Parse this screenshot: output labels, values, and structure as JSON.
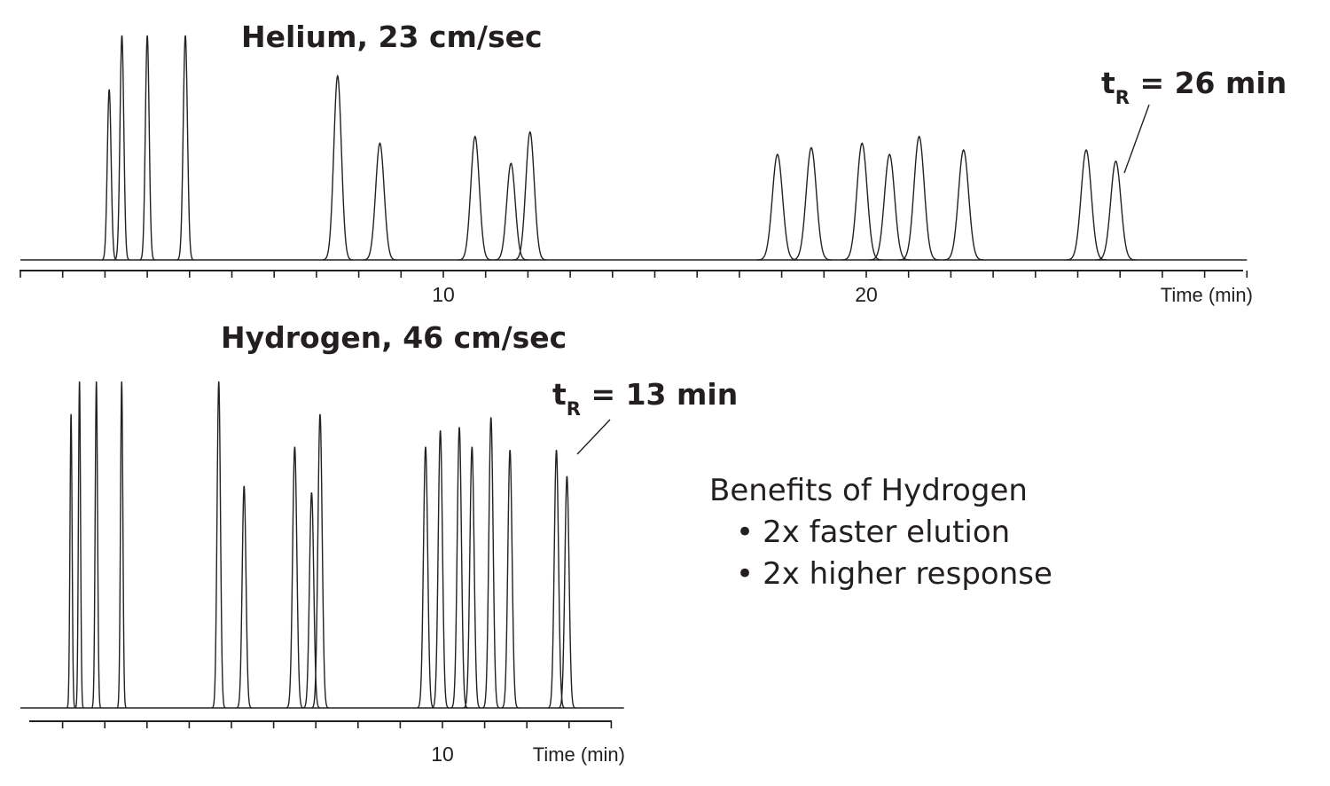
{
  "chart_data": [
    {
      "type": "line",
      "title": "Helium, 23 cm/sec",
      "xlabel": "Time (min)",
      "ylabel": "",
      "xlim": [
        0,
        29
      ],
      "xticks": [
        0,
        1,
        2,
        3,
        4,
        5,
        6,
        7,
        8,
        9,
        10,
        11,
        12,
        13,
        14,
        15,
        16,
        17,
        18,
        19,
        20,
        21,
        22,
        23,
        24,
        25,
        26,
        27,
        28,
        29
      ],
      "xtick_labels": [
        {
          "value": 10,
          "label": "10"
        },
        {
          "value": 20,
          "label": "20"
        }
      ],
      "grid": false,
      "peaks": [
        {
          "t": 2.1,
          "height": 0.76,
          "width": 0.045
        },
        {
          "t": 2.4,
          "height": 1.0,
          "width": 0.045
        },
        {
          "t": 3.0,
          "height": 1.0,
          "width": 0.045
        },
        {
          "t": 3.9,
          "height": 1.0,
          "width": 0.05
        },
        {
          "t": 7.5,
          "height": 0.82,
          "width": 0.09
        },
        {
          "t": 8.5,
          "height": 0.52,
          "width": 0.1
        },
        {
          "t": 10.75,
          "height": 0.55,
          "width": 0.1
        },
        {
          "t": 11.6,
          "height": 0.43,
          "width": 0.1
        },
        {
          "t": 12.05,
          "height": 0.57,
          "width": 0.1
        },
        {
          "t": 17.9,
          "height": 0.47,
          "width": 0.12
        },
        {
          "t": 18.7,
          "height": 0.5,
          "width": 0.12
        },
        {
          "t": 19.9,
          "height": 0.52,
          "width": 0.12
        },
        {
          "t": 20.55,
          "height": 0.47,
          "width": 0.12
        },
        {
          "t": 21.25,
          "height": 0.55,
          "width": 0.12
        },
        {
          "t": 22.3,
          "height": 0.49,
          "width": 0.12
        },
        {
          "t": 25.2,
          "height": 0.49,
          "width": 0.12
        },
        {
          "t": 25.9,
          "height": 0.44,
          "width": 0.12
        }
      ],
      "annotation": {
        "main": "t",
        "sub": "R",
        "text": " = 26 min",
        "points_to_t": 25.9
      }
    },
    {
      "type": "line",
      "title": "Hydrogen, 46 cm/sec",
      "xlabel": "Time (min)",
      "ylabel": "",
      "xlim": [
        0,
        14.3
      ],
      "xticks": [
        1,
        2,
        3,
        4,
        5,
        6,
        7,
        8,
        9,
        10,
        11,
        12,
        13,
        14
      ],
      "xtick_labels": [
        {
          "value": 10,
          "label": "10"
        }
      ],
      "grid": false,
      "peaks": [
        {
          "t": 1.2,
          "height": 0.9,
          "width": 0.025
        },
        {
          "t": 1.4,
          "height": 1.0,
          "width": 0.025
        },
        {
          "t": 1.8,
          "height": 1.0,
          "width": 0.028
        },
        {
          "t": 2.4,
          "height": 1.0,
          "width": 0.028
        },
        {
          "t": 4.7,
          "height": 1.0,
          "width": 0.04
        },
        {
          "t": 5.3,
          "height": 0.68,
          "width": 0.045
        },
        {
          "t": 6.5,
          "height": 0.8,
          "width": 0.05
        },
        {
          "t": 6.9,
          "height": 0.66,
          "width": 0.05
        },
        {
          "t": 7.1,
          "height": 0.9,
          "width": 0.05
        },
        {
          "t": 9.6,
          "height": 0.8,
          "width": 0.05
        },
        {
          "t": 9.95,
          "height": 0.85,
          "width": 0.05
        },
        {
          "t": 10.4,
          "height": 0.86,
          "width": 0.05
        },
        {
          "t": 10.7,
          "height": 0.8,
          "width": 0.05
        },
        {
          "t": 11.15,
          "height": 0.89,
          "width": 0.05
        },
        {
          "t": 11.6,
          "height": 0.79,
          "width": 0.05
        },
        {
          "t": 12.7,
          "height": 0.79,
          "width": 0.05
        },
        {
          "t": 12.95,
          "height": 0.71,
          "width": 0.05
        }
      ],
      "annotation": {
        "main": "t",
        "sub": "R",
        "text": " = 13 min",
        "points_to_t": 13.0
      }
    }
  ],
  "benefits": {
    "heading": "Benefits of Hydrogen",
    "items": [
      "2x faster elution",
      "2x higher response"
    ]
  }
}
